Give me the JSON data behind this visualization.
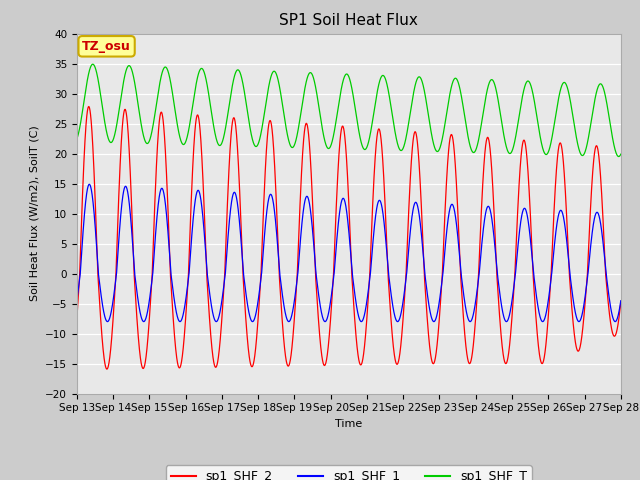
{
  "title": "SP1 Soil Heat Flux",
  "xlabel": "Time",
  "ylabel": "Soil Heat Flux (W/m2), SoilT (C)",
  "ylim": [
    -20,
    40
  ],
  "yticks": [
    -20,
    -15,
    -10,
    -5,
    0,
    5,
    10,
    15,
    20,
    25,
    30,
    35,
    40
  ],
  "x_tick_labels": [
    "Sep 13",
    "Sep 14",
    "Sep 15",
    "Sep 16",
    "Sep 17",
    "Sep 18",
    "Sep 19",
    "Sep 20",
    "Sep 21",
    "Sep 22",
    "Sep 23",
    "Sep 24",
    "Sep 25",
    "Sep 26",
    "Sep 27",
    "Sep 28"
  ],
  "color_shf2": "#FF0000",
  "color_shf1": "#0000FF",
  "color_shft": "#00CC00",
  "legend_labels": [
    "sp1_SHF_2",
    "sp1_SHF_1",
    "sp1_SHF_T"
  ],
  "annotation_text": "TZ_osu",
  "annotation_bg": "#FFFF99",
  "annotation_border": "#CCAA00",
  "fig_bg": "#CCCCCC",
  "plot_bg": "#E8E8E8",
  "grid_color": "#FFFFFF",
  "title_fontsize": 11,
  "axis_label_fontsize": 8,
  "tick_fontsize": 7.5,
  "legend_fontsize": 9,
  "n_days": 15,
  "points_per_day": 288
}
